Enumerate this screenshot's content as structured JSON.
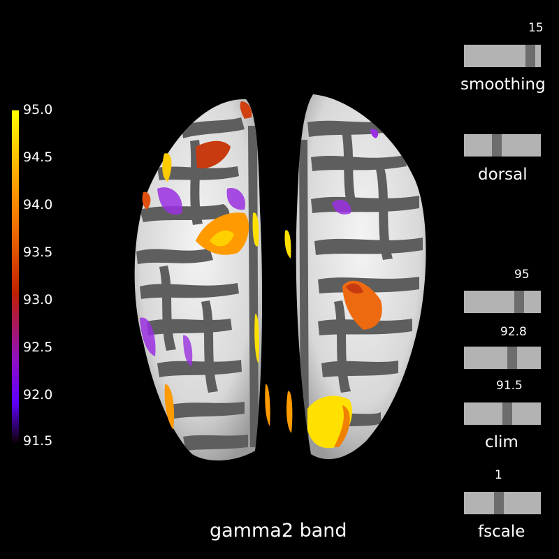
{
  "title": "gamma2 band",
  "colorbar": {
    "ticks": [
      "95.0",
      "94.5",
      "94.0",
      "93.5",
      "93.0",
      "92.5",
      "92.0",
      "91.5"
    ]
  },
  "sliders": {
    "smoothing": {
      "label": "smoothing",
      "value": "15",
      "fraction": 0.92
    },
    "dorsal": {
      "label": "dorsal",
      "fraction": 0.42
    },
    "clim_high": {
      "value": "95",
      "fraction": 0.75
    },
    "clim_mid": {
      "value": "92.8",
      "fraction": 0.65
    },
    "clim_low": {
      "value": "91.5",
      "fraction": 0.57
    },
    "clim_label": "clim",
    "fscale": {
      "label": "fscale",
      "value": "1",
      "fraction": 0.45
    }
  },
  "colors": {
    "background": "#000000",
    "track": "#b3b3b3",
    "knob": "#6d6d6d"
  }
}
